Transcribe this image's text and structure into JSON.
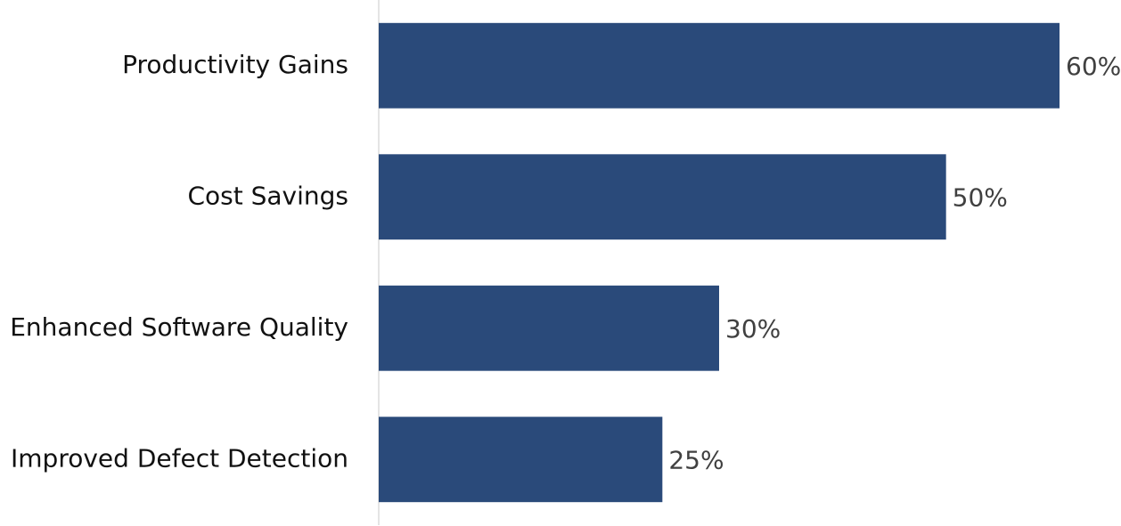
{
  "chart_data": {
    "type": "bar",
    "orientation": "horizontal",
    "categories": [
      "Productivity Gains",
      "Cost Savings",
      "Enhanced Software Quality",
      "Improved Defect Detection"
    ],
    "values": [
      60,
      50,
      30,
      25
    ],
    "value_labels": [
      "60%",
      "50%",
      "30%",
      "25%"
    ],
    "color": "#2a4a7a",
    "xlim": [
      0,
      60
    ]
  }
}
